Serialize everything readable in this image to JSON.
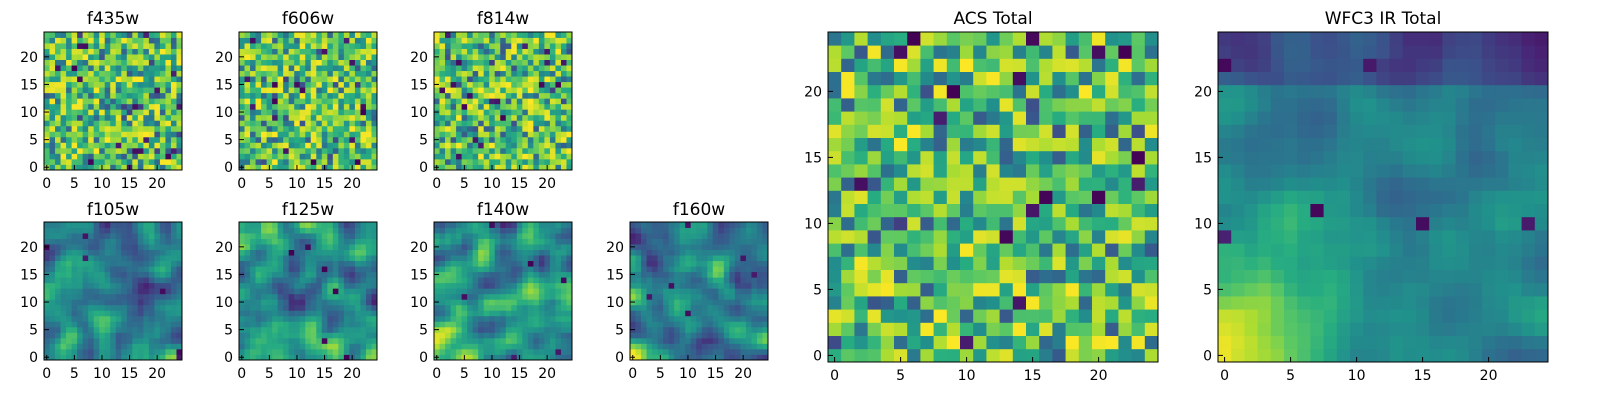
{
  "colormap": "viridis",
  "chart_data": [
    {
      "type": "heatmap",
      "title": "f435w",
      "grid_size": 25,
      "xticks": [
        0,
        5,
        10,
        15,
        20
      ],
      "yticks": [
        0,
        5,
        10,
        15,
        20
      ],
      "xlim": [
        -0.5,
        24.5
      ],
      "ylim": [
        -0.5,
        24.5
      ],
      "pattern": "noise",
      "colormap": "viridis"
    },
    {
      "type": "heatmap",
      "title": "f606w",
      "grid_size": 25,
      "xticks": [
        0,
        5,
        10,
        15,
        20
      ],
      "yticks": [
        0,
        5,
        10,
        15,
        20
      ],
      "xlim": [
        -0.5,
        24.5
      ],
      "ylim": [
        -0.5,
        24.5
      ],
      "pattern": "noise",
      "colormap": "viridis"
    },
    {
      "type": "heatmap",
      "title": "f814w",
      "grid_size": 25,
      "xticks": [
        0,
        5,
        10,
        15,
        20
      ],
      "yticks": [
        0,
        5,
        10,
        15,
        20
      ],
      "xlim": [
        -0.5,
        24.5
      ],
      "ylim": [
        -0.5,
        24.5
      ],
      "pattern": "noise",
      "colormap": "viridis"
    },
    {
      "type": "heatmap",
      "title": "f105w",
      "grid_size": 25,
      "xticks": [
        0,
        5,
        10,
        15,
        20
      ],
      "yticks": [
        0,
        5,
        10,
        15,
        20
      ],
      "xlim": [
        -0.5,
        24.5
      ],
      "ylim": [
        -0.5,
        24.5
      ],
      "pattern": "smooth",
      "colormap": "viridis"
    },
    {
      "type": "heatmap",
      "title": "f125w",
      "grid_size": 25,
      "xticks": [
        0,
        5,
        10,
        15,
        20
      ],
      "yticks": [
        0,
        5,
        10,
        15,
        20
      ],
      "xlim": [
        -0.5,
        24.5
      ],
      "ylim": [
        -0.5,
        24.5
      ],
      "pattern": "smooth",
      "colormap": "viridis"
    },
    {
      "type": "heatmap",
      "title": "f140w",
      "grid_size": 25,
      "xticks": [
        0,
        5,
        10,
        15,
        20
      ],
      "yticks": [
        0,
        5,
        10,
        15,
        20
      ],
      "xlim": [
        -0.5,
        24.5
      ],
      "ylim": [
        -0.5,
        24.5
      ],
      "pattern": "smooth",
      "colormap": "viridis"
    },
    {
      "type": "heatmap",
      "title": "f160w",
      "grid_size": 25,
      "xticks": [
        0,
        5,
        10,
        15,
        20
      ],
      "yticks": [
        0,
        5,
        10,
        15,
        20
      ],
      "xlim": [
        -0.5,
        24.5
      ],
      "ylim": [
        -0.5,
        24.5
      ],
      "pattern": "smooth",
      "colormap": "viridis"
    },
    {
      "type": "heatmap",
      "title": "ACS Total",
      "grid_size": 25,
      "xticks": [
        0,
        5,
        10,
        15,
        20
      ],
      "yticks": [
        0,
        5,
        10,
        15,
        20
      ],
      "xlim": [
        -0.5,
        24.5
      ],
      "ylim": [
        -0.5,
        24.5
      ],
      "pattern": "noise",
      "colormap": "viridis"
    },
    {
      "type": "heatmap",
      "title": "WFC3 IR Total",
      "grid_size": 25,
      "xticks": [
        0,
        5,
        10,
        15,
        20
      ],
      "yticks": [
        0,
        5,
        10,
        15,
        20
      ],
      "xlim": [
        -0.5,
        24.5
      ],
      "ylim": [
        -0.5,
        24.5
      ],
      "pattern": "gradient",
      "colormap": "viridis"
    }
  ]
}
